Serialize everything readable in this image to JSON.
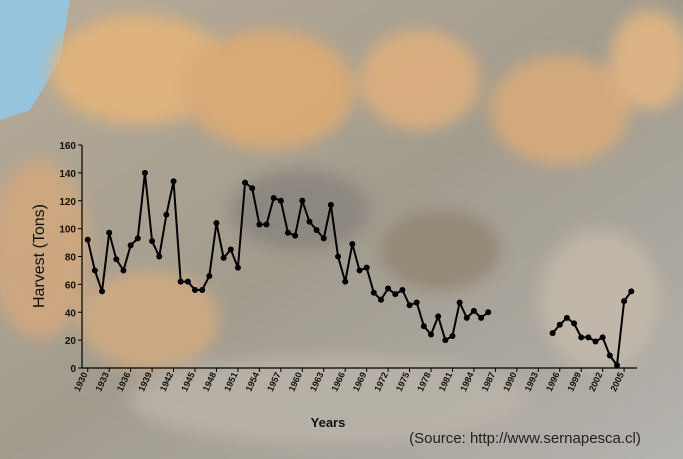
{
  "chart_data": {
    "type": "line",
    "x_label": "Years",
    "y_label": "Harvest (Tons)",
    "source": "(Source: http://www.sernapesca.cl)",
    "x": [
      1930,
      1931,
      1932,
      1933,
      1934,
      1935,
      1936,
      1937,
      1938,
      1939,
      1940,
      1941,
      1942,
      1943,
      1944,
      1945,
      1946,
      1947,
      1948,
      1949,
      1950,
      1951,
      1952,
      1953,
      1954,
      1955,
      1956,
      1957,
      1958,
      1959,
      1960,
      1961,
      1962,
      1963,
      1964,
      1965,
      1966,
      1967,
      1968,
      1969,
      1970,
      1971,
      1972,
      1973,
      1974,
      1975,
      1976,
      1977,
      1978,
      1979,
      1980,
      1981,
      1982,
      1983,
      1984,
      1985,
      1986,
      1987,
      1988,
      1989,
      1990,
      1991,
      1992,
      1993,
      1994,
      1995,
      1996,
      1997,
      1998,
      1999,
      2000,
      2001,
      2002,
      2003,
      2004,
      2005,
      2006
    ],
    "series": [
      {
        "color": "#000000",
        "values": [
          92,
          70,
          55,
          97,
          78,
          70,
          88,
          93,
          140,
          91,
          80,
          110,
          134,
          62,
          62,
          56,
          56,
          66,
          104,
          79,
          85,
          72,
          133,
          129,
          103,
          103,
          122,
          120,
          97,
          95,
          120,
          105,
          99,
          93,
          117,
          80,
          62,
          89,
          70,
          72,
          54,
          49,
          57,
          53,
          56,
          45,
          47,
          30,
          24,
          37,
          20,
          23,
          47,
          36,
          41,
          36,
          40,
          null,
          null,
          null,
          null,
          null,
          null,
          null,
          null,
          25,
          31,
          36,
          32,
          22,
          22,
          19,
          22,
          9,
          2,
          48,
          55
        ]
      }
    ],
    "xlim": [
      1929.2,
      2006.8
    ],
    "xticks": [
      1930,
      1933,
      1936,
      1939,
      1942,
      1945,
      1948,
      1951,
      1954,
      1957,
      1960,
      1963,
      1966,
      1969,
      1972,
      1975,
      1978,
      1981,
      1984,
      1987,
      1990,
      1993,
      1996,
      1999,
      2002,
      2005
    ],
    "ylim": [
      0,
      160
    ],
    "yticks": [
      0,
      20,
      40,
      60,
      80,
      100,
      120,
      140,
      160
    ]
  }
}
